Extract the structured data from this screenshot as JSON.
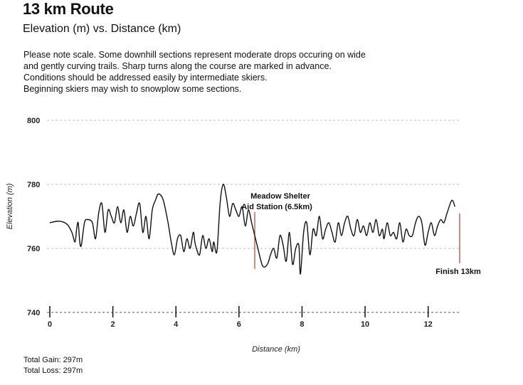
{
  "header": {
    "title": "13 km Route",
    "subtitle": "Elevation (m) vs. Distance (km)"
  },
  "note_lines": [
    "Please note scale. Some downhill sections represent moderate drops occuring on wide",
    "and gently curving trails. Sharp turns along the course are marked in advance.",
    "Conditions should be addressed easily by intermediate skiers.",
    "Beginning skiers may wish to snowplow some sections."
  ],
  "stats": {
    "gain": "Total Gain: 297m",
    "loss": "Total Loss: 297m"
  },
  "colors": {
    "line": "#111111",
    "grid": "#bbbbbb",
    "marker": "#c0392b"
  },
  "chart_data": {
    "type": "line",
    "xlabel": "Distance (km)",
    "ylabel": "Elevation (m)",
    "xlim": [
      0,
      13
    ],
    "ylim": [
      740,
      800
    ],
    "x_ticks": [
      0,
      2,
      4,
      6,
      8,
      10,
      12
    ],
    "y_ticks": [
      740,
      760,
      780,
      800
    ],
    "grid": "horizontal dashed",
    "series": [
      {
        "name": "Elevation",
        "points": [
          [
            0.0,
            768
          ],
          [
            0.3,
            768.5
          ],
          [
            0.55,
            767.5
          ],
          [
            0.7,
            765
          ],
          [
            0.8,
            762
          ],
          [
            0.85,
            766
          ],
          [
            0.9,
            768
          ],
          [
            0.95,
            762
          ],
          [
            1.0,
            761
          ],
          [
            1.1,
            768
          ],
          [
            1.2,
            769
          ],
          [
            1.35,
            768
          ],
          [
            1.45,
            763
          ],
          [
            1.55,
            771
          ],
          [
            1.65,
            774
          ],
          [
            1.75,
            765
          ],
          [
            1.85,
            772
          ],
          [
            1.95,
            770
          ],
          [
            2.05,
            768
          ],
          [
            2.15,
            773
          ],
          [
            2.25,
            768
          ],
          [
            2.35,
            772
          ],
          [
            2.45,
            765
          ],
          [
            2.55,
            770
          ],
          [
            2.65,
            767
          ],
          [
            2.75,
            771
          ],
          [
            2.85,
            774
          ],
          [
            2.95,
            765
          ],
          [
            3.05,
            770
          ],
          [
            3.15,
            763
          ],
          [
            3.25,
            772
          ],
          [
            3.35,
            775
          ],
          [
            3.45,
            777
          ],
          [
            3.6,
            775
          ],
          [
            3.75,
            768
          ],
          [
            3.85,
            762
          ],
          [
            3.95,
            758
          ],
          [
            4.05,
            763
          ],
          [
            4.15,
            764
          ],
          [
            4.25,
            759
          ],
          [
            4.35,
            763
          ],
          [
            4.45,
            760
          ],
          [
            4.55,
            765
          ],
          [
            4.6,
            762
          ],
          [
            4.65,
            760
          ],
          [
            4.75,
            758
          ],
          [
            4.85,
            764
          ],
          [
            4.95,
            760
          ],
          [
            5.05,
            763
          ],
          [
            5.15,
            759
          ],
          [
            5.2,
            762
          ],
          [
            5.3,
            759
          ],
          [
            5.4,
            774
          ],
          [
            5.5,
            780
          ],
          [
            5.6,
            776
          ],
          [
            5.7,
            770
          ],
          [
            5.8,
            774
          ],
          [
            5.9,
            772
          ],
          [
            6.0,
            770
          ],
          [
            6.1,
            773
          ],
          [
            6.2,
            767
          ],
          [
            6.3,
            772
          ],
          [
            6.4,
            768
          ],
          [
            6.5,
            764
          ],
          [
            6.6,
            760
          ],
          [
            6.75,
            754.5
          ],
          [
            6.9,
            755
          ],
          [
            7.0,
            758
          ],
          [
            7.1,
            760
          ],
          [
            7.2,
            757
          ],
          [
            7.3,
            764
          ],
          [
            7.4,
            761
          ],
          [
            7.5,
            756
          ],
          [
            7.6,
            765
          ],
          [
            7.7,
            755
          ],
          [
            7.8,
            760
          ],
          [
            7.9,
            761
          ],
          [
            7.95,
            752
          ],
          [
            8.05,
            765
          ],
          [
            8.15,
            768
          ],
          [
            8.25,
            758
          ],
          [
            8.35,
            766
          ],
          [
            8.45,
            764
          ],
          [
            8.55,
            770
          ],
          [
            8.65,
            763
          ],
          [
            8.75,
            766
          ],
          [
            8.85,
            768
          ],
          [
            8.95,
            765
          ],
          [
            9.05,
            762
          ],
          [
            9.15,
            768
          ],
          [
            9.25,
            764
          ],
          [
            9.35,
            768
          ],
          [
            9.45,
            770
          ],
          [
            9.55,
            766
          ],
          [
            9.65,
            764
          ],
          [
            9.75,
            769
          ],
          [
            9.85,
            765
          ],
          [
            9.95,
            767
          ],
          [
            10.05,
            764
          ],
          [
            10.15,
            768
          ],
          [
            10.25,
            765
          ],
          [
            10.35,
            769
          ],
          [
            10.45,
            764
          ],
          [
            10.55,
            766
          ],
          [
            10.6,
            763
          ],
          [
            10.7,
            768
          ],
          [
            10.8,
            764
          ],
          [
            10.9,
            765
          ],
          [
            11.0,
            763
          ],
          [
            11.1,
            768
          ],
          [
            11.2,
            762
          ],
          [
            11.3,
            766
          ],
          [
            11.4,
            764
          ],
          [
            11.5,
            764
          ],
          [
            11.6,
            768
          ],
          [
            11.7,
            770
          ],
          [
            11.8,
            768
          ],
          [
            11.9,
            761
          ],
          [
            12.0,
            765
          ],
          [
            12.1,
            768
          ],
          [
            12.2,
            764
          ],
          [
            12.3,
            767
          ],
          [
            12.4,
            769
          ],
          [
            12.5,
            768
          ],
          [
            12.6,
            771
          ],
          [
            12.75,
            775
          ],
          [
            12.85,
            773
          ]
        ]
      }
    ],
    "annotations": [
      {
        "x": 6.5,
        "label_lines": [
          "Meadow Shelter",
          "Aid Station (6.5km)"
        ]
      },
      {
        "x": 13.0,
        "label_lines": [
          "Finish 13km"
        ]
      }
    ]
  }
}
